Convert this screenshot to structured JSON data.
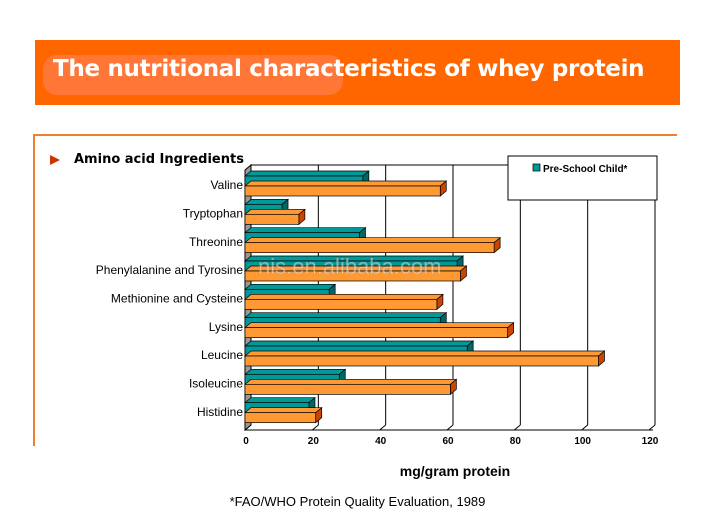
{
  "header": {
    "title": "The nutritional characteristics of whey protein"
  },
  "section": {
    "label": "Amino acid Ingredients"
  },
  "footnote": "*FAO/WHO Protein Quality Evaluation, 1989",
  "watermark": "nis.en.alibaba.com",
  "chart_data": {
    "type": "bar",
    "orientation": "horizontal",
    "style": "3d",
    "categories": [
      "Valine",
      "Tryptophan",
      "Threonine",
      "Phenylalanine and Tyrosine",
      "Methionine and Cysteine",
      "Lysine",
      "Leucine",
      "Isoleucine",
      "Histidine"
    ],
    "series": [
      {
        "name": "Pre-School Child*",
        "color": "#009999",
        "values": [
          35,
          11,
          34,
          63,
          25,
          58,
          66,
          28,
          19
        ]
      },
      {
        "name": "",
        "color": "#FF9933",
        "values": [
          58,
          16,
          74,
          64,
          57,
          78,
          105,
          61,
          21
        ]
      }
    ],
    "xlabel": "mg/gram protein",
    "xlim": [
      0,
      120
    ],
    "xticks": [
      0,
      20,
      40,
      60,
      80,
      100,
      120
    ],
    "grid": true,
    "legend": "top-right"
  }
}
